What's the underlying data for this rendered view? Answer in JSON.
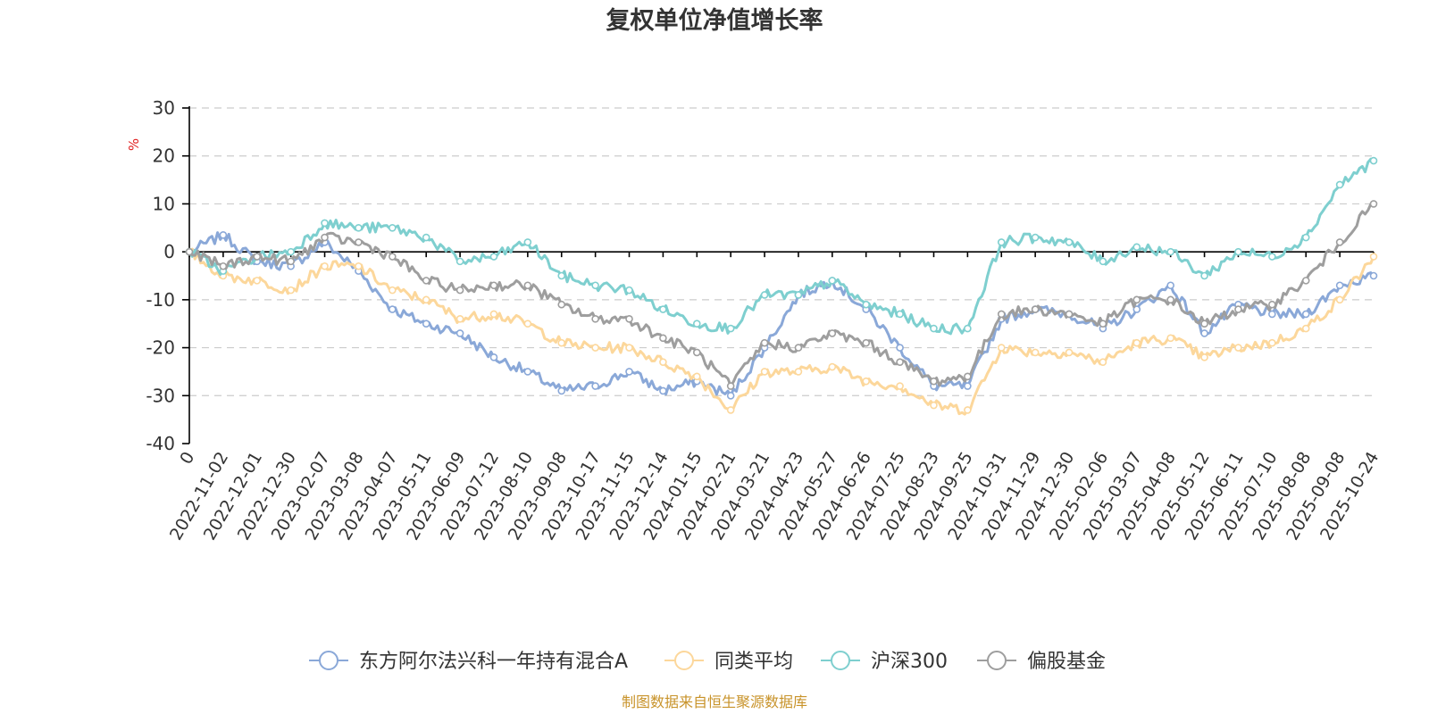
{
  "chart_data": {
    "type": "line",
    "title": "复权单位净值增长率",
    "ylabel": "%",
    "xlabel": "",
    "ylim": [
      -40,
      30
    ],
    "yticks": [
      30,
      20,
      10,
      0,
      -10,
      -20,
      -30,
      -40
    ],
    "grid": true,
    "legend_position": "bottom",
    "categories": [
      "0",
      "2022-11-02",
      "2022-12-01",
      "2022-12-30",
      "2023-02-07",
      "2023-03-08",
      "2023-04-07",
      "2023-05-11",
      "2023-06-09",
      "2023-07-12",
      "2023-08-10",
      "2023-09-08",
      "2023-10-17",
      "2023-11-15",
      "2023-12-14",
      "2024-01-15",
      "2024-02-21",
      "2024-03-21",
      "2024-04-23",
      "2024-05-27",
      "2024-06-26",
      "2024-07-25",
      "2024-08-23",
      "2024-09-25",
      "2024-10-31",
      "2024-11-29",
      "2024-12-30",
      "2025-02-06",
      "2025-03-07",
      "2025-04-08",
      "2025-05-12",
      "2025-06-11",
      "2025-07-10",
      "2025-08-08",
      "2025-09-08",
      "2025-10-24"
    ],
    "series": [
      {
        "name": "东方阿尔法兴科一年持有混合A",
        "color": "#8aa8d8",
        "values": [
          0,
          3.5,
          -2,
          -3,
          2,
          -4,
          -12,
          -15,
          -17,
          -22,
          -25,
          -29,
          -28,
          -25,
          -29,
          -27,
          -30,
          -20,
          -9,
          -6,
          -12,
          -20,
          -28,
          -28,
          -14,
          -12,
          -13,
          -16,
          -12,
          -7,
          -17,
          -11,
          -13,
          -13,
          -7,
          -5
        ]
      },
      {
        "name": "同类平均",
        "color": "#fcd79b",
        "values": [
          0,
          -5,
          -6,
          -8,
          -3,
          -3,
          -8,
          -10,
          -14,
          -13,
          -15,
          -19,
          -20,
          -20,
          -23,
          -26,
          -33,
          -25,
          -25,
          -24,
          -27,
          -28,
          -32,
          -33,
          -20,
          -21,
          -21,
          -23,
          -19,
          -18,
          -22,
          -20,
          -19,
          -16,
          -10,
          -1
        ]
      },
      {
        "name": "沪深300",
        "color": "#7ecfcf",
        "values": [
          0,
          -4,
          -1,
          0,
          6,
          5,
          5,
          3,
          -2,
          -1,
          2,
          -5,
          -7,
          -8,
          -12,
          -15,
          -16,
          -9,
          -9,
          -6,
          -11,
          -13,
          -16,
          -16,
          2,
          3,
          2,
          -2,
          1,
          0,
          -5,
          0,
          -1,
          3,
          14,
          19
        ]
      },
      {
        "name": "偏股基金",
        "color": "#9e9e9e",
        "values": [
          0,
          -3,
          -1,
          -2,
          3,
          2,
          -1,
          -6,
          -8,
          -7,
          -7,
          -11,
          -14,
          -14,
          -18,
          -21,
          -28,
          -19,
          -20,
          -17,
          -19,
          -23,
          -27,
          -26,
          -13,
          -12,
          -13,
          -15,
          -10,
          -10,
          -15,
          -12,
          -11,
          -6,
          2,
          10
        ]
      }
    ]
  },
  "source": "制图数据来自恒生聚源数据库",
  "colors": {
    "title": "#333333",
    "unit": "#e02020",
    "source": "#c8932a",
    "grid": "#cccccc",
    "axis": "#000000"
  }
}
